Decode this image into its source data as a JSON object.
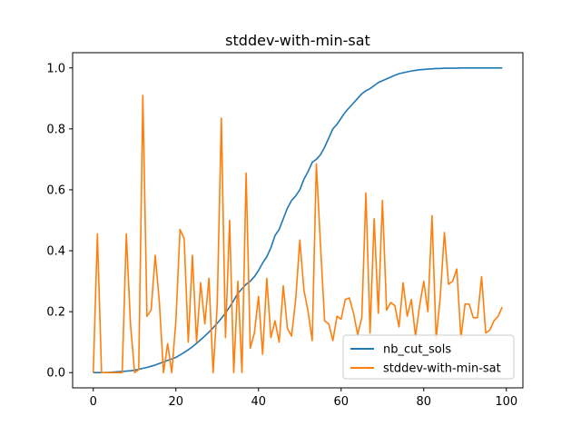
{
  "chart_data": {
    "type": "line",
    "title": "stddev-with-min-sat",
    "xlabel": "",
    "ylabel": "",
    "xlim": [
      -5,
      104
    ],
    "ylim": [
      -0.05,
      1.05
    ],
    "x_ticks": [
      0,
      20,
      40,
      60,
      80,
      100
    ],
    "y_ticks": [
      0.0,
      0.2,
      0.4,
      0.6,
      0.8,
      1.0
    ],
    "x_tick_labels": [
      "0",
      "20",
      "40",
      "60",
      "80",
      "100"
    ],
    "y_tick_labels": [
      "0.0",
      "0.2",
      "0.4",
      "0.6",
      "0.8",
      "1.0"
    ],
    "grid": false,
    "legend_position": "lower-right",
    "series": [
      {
        "name": "nb_cut_sols",
        "color": "#1f77b4",
        "x": [
          0,
          1,
          2,
          3,
          4,
          5,
          6,
          7,
          8,
          9,
          10,
          11,
          12,
          13,
          14,
          15,
          16,
          17,
          18,
          19,
          20,
          21,
          22,
          23,
          24,
          25,
          26,
          27,
          28,
          29,
          30,
          31,
          32,
          33,
          34,
          35,
          36,
          37,
          38,
          39,
          40,
          41,
          42,
          43,
          44,
          45,
          46,
          47,
          48,
          49,
          50,
          51,
          52,
          53,
          54,
          55,
          56,
          57,
          58,
          59,
          60,
          61,
          62,
          63,
          64,
          65,
          66,
          67,
          68,
          69,
          70,
          71,
          72,
          73,
          74,
          75,
          76,
          77,
          78,
          79,
          80,
          81,
          82,
          83,
          84,
          85,
          86,
          87,
          88,
          89,
          90,
          91,
          92,
          93,
          94,
          95,
          96,
          97,
          98,
          99
        ],
        "y": [
          0.0,
          0.0,
          0.0,
          0.0,
          0.001,
          0.002,
          0.003,
          0.004,
          0.005,
          0.006,
          0.008,
          0.011,
          0.014,
          0.017,
          0.021,
          0.025,
          0.03,
          0.035,
          0.04,
          0.045,
          0.05,
          0.058,
          0.066,
          0.075,
          0.085,
          0.096,
          0.108,
          0.12,
          0.133,
          0.147,
          0.162,
          0.178,
          0.195,
          0.215,
          0.237,
          0.26,
          0.275,
          0.29,
          0.3,
          0.315,
          0.335,
          0.36,
          0.38,
          0.41,
          0.45,
          0.47,
          0.505,
          0.54,
          0.565,
          0.58,
          0.6,
          0.635,
          0.66,
          0.69,
          0.7,
          0.715,
          0.74,
          0.77,
          0.8,
          0.815,
          0.835,
          0.855,
          0.87,
          0.885,
          0.9,
          0.915,
          0.925,
          0.932,
          0.942,
          0.952,
          0.958,
          0.964,
          0.97,
          0.976,
          0.981,
          0.984,
          0.987,
          0.99,
          0.992,
          0.994,
          0.995,
          0.996,
          0.997,
          0.998,
          0.998,
          0.999,
          0.999,
          0.999,
          0.999,
          1.0,
          1.0,
          1.0,
          1.0,
          1.0,
          1.0,
          1.0,
          1.0,
          1.0,
          1.0,
          1.0
        ]
      },
      {
        "name": "stddev-with-min-sat",
        "color": "#ff7f0e",
        "x": [
          0,
          1,
          2,
          3,
          4,
          5,
          6,
          7,
          8,
          9,
          10,
          11,
          12,
          13,
          14,
          15,
          16,
          17,
          18,
          19,
          20,
          21,
          22,
          23,
          24,
          25,
          26,
          27,
          28,
          29,
          30,
          31,
          32,
          33,
          34,
          35,
          36,
          37,
          38,
          39,
          40,
          41,
          42,
          43,
          44,
          45,
          46,
          47,
          48,
          49,
          50,
          51,
          52,
          53,
          54,
          55,
          56,
          57,
          58,
          59,
          60,
          61,
          62,
          63,
          64,
          65,
          66,
          67,
          68,
          69,
          70,
          71,
          72,
          73,
          74,
          75,
          76,
          77,
          78,
          79,
          80,
          81,
          82,
          83,
          84,
          85,
          86,
          87,
          88,
          89,
          90,
          91,
          92,
          93,
          94,
          95,
          96,
          97,
          98,
          99
        ],
        "y": [
          0.0,
          0.455,
          0.0,
          0.0,
          0.0,
          0.0,
          0.0,
          0.0,
          0.455,
          0.16,
          0.0,
          0.01,
          0.91,
          0.185,
          0.205,
          0.385,
          0.23,
          0.0,
          0.095,
          0.0,
          0.17,
          0.47,
          0.44,
          0.1,
          0.385,
          0.1,
          0.295,
          0.16,
          0.31,
          0.0,
          0.22,
          0.835,
          0.115,
          0.5,
          0.0,
          0.3,
          0.0,
          0.655,
          0.08,
          0.13,
          0.25,
          0.06,
          0.31,
          0.115,
          0.17,
          0.1,
          0.285,
          0.145,
          0.12,
          0.24,
          0.435,
          0.27,
          0.2,
          0.105,
          0.685,
          0.42,
          0.17,
          0.16,
          0.105,
          0.185,
          0.175,
          0.24,
          0.245,
          0.195,
          0.125,
          0.18,
          0.59,
          0.13,
          0.505,
          0.195,
          0.565,
          0.205,
          0.23,
          0.22,
          0.15,
          0.295,
          0.185,
          0.24,
          0.12,
          0.22,
          0.3,
          0.2,
          0.515,
          0.11,
          0.25,
          0.46,
          0.29,
          0.3,
          0.34,
          0.115,
          0.225,
          0.225,
          0.18,
          0.18,
          0.315,
          0.13,
          0.14,
          0.17,
          0.185,
          0.215
        ]
      }
    ]
  }
}
